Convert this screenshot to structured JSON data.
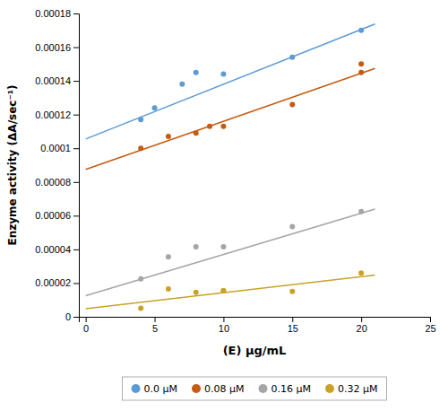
{
  "chart_data": {
    "type": "scatter",
    "xlabel": "(E) μg/mL",
    "ylabel": "Enzyme activity (ΔA/sec⁻¹)",
    "xlim": [
      -0.5,
      25
    ],
    "ylim": [
      0,
      0.00018
    ],
    "xticks": [
      0,
      5,
      10,
      15,
      20,
      25
    ],
    "yticks": [
      0,
      2e-05,
      4e-05,
      6e-05,
      8e-05,
      0.0001,
      0.00012,
      0.00014,
      0.00016,
      0.00018
    ],
    "grid": false,
    "series": [
      {
        "name": "0.0 μM",
        "type": "scatter",
        "color": "#5B9BD5",
        "x": [
          4,
          5,
          7,
          8,
          10,
          15,
          20
        ],
        "values": [
          0.000117,
          0.000124,
          0.000138,
          0.000145,
          0.000144,
          0.000154,
          0.00017
        ]
      },
      {
        "name": "0.08 μM",
        "type": "scatter",
        "color": "#C55A11",
        "x": [
          4,
          6,
          8,
          9,
          10,
          15,
          20,
          20
        ],
        "values": [
          0.0001,
          0.000107,
          0.000109,
          0.000113,
          0.000113,
          0.000126,
          0.000145,
          0.00015
        ]
      },
      {
        "name": "0.16 μM",
        "type": "scatter",
        "color": "#A5A5A5",
        "x": [
          4,
          6,
          8,
          10,
          15,
          20
        ],
        "values": [
          2.25e-05,
          3.55e-05,
          4.15e-05,
          4.15e-05,
          5.35e-05,
          6.25e-05
        ]
      },
      {
        "name": "0.32 μM",
        "type": "scatter",
        "color": "#C9A227",
        "x": [
          4,
          6,
          8,
          10,
          10,
          15,
          20
        ],
        "values": [
          5e-06,
          1.65e-05,
          1.45e-05,
          1.55e-05,
          1.55e-05,
          1.5e-05,
          2.6e-05
        ]
      },
      {
        "type": "line",
        "color": "#5B9BD5",
        "x": [
          0,
          21
        ],
        "values": [
          0.0001055,
          0.00017375
        ]
      },
      {
        "type": "line",
        "color": "#C55A11",
        "x": [
          0,
          21
        ],
        "values": [
          8.75e-05,
          0.00014735
        ]
      },
      {
        "type": "line",
        "color": "#A5A5A5",
        "x": [
          0,
          21
        ],
        "values": [
          1.25e-05,
          6.395e-05
        ]
      },
      {
        "type": "line",
        "color": "#C9A227",
        "x": [
          0,
          21
        ],
        "values": [
          4.8e-06,
          2.475e-05
        ]
      }
    ]
  }
}
